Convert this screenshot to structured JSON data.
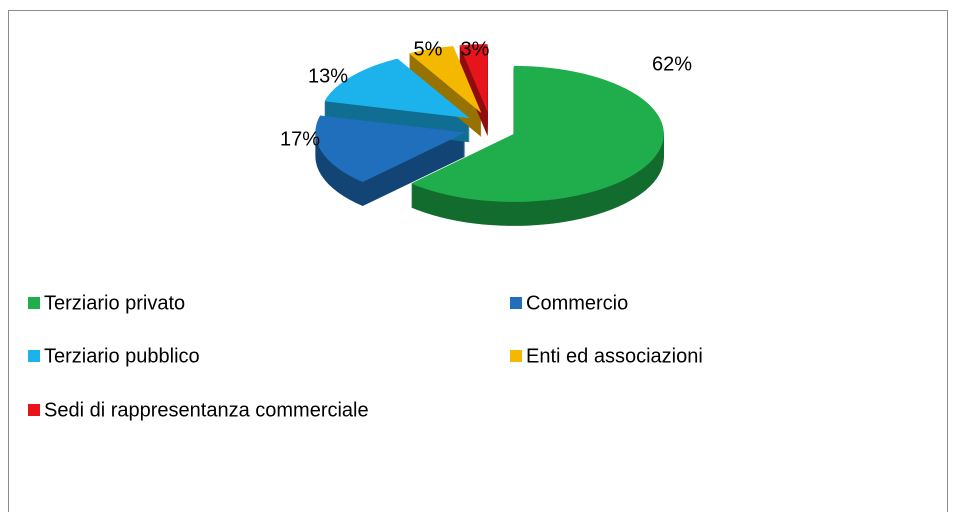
{
  "chart_data": {
    "type": "pie3d",
    "categories": [
      "Terziario privato",
      "Commercio",
      "Terziario pubblico",
      "Enti ed associazioni",
      "Sedi di rappresentanza commerciale"
    ],
    "values": [
      62,
      17,
      13,
      5,
      3
    ],
    "value_labels": [
      "62%",
      "17%",
      "13%",
      "5%",
      "3%"
    ],
    "colors": [
      "#1fae4b",
      "#1f6fbd",
      "#1cb2ec",
      "#f5b800",
      "#e8141c"
    ],
    "legend": "bottom"
  }
}
